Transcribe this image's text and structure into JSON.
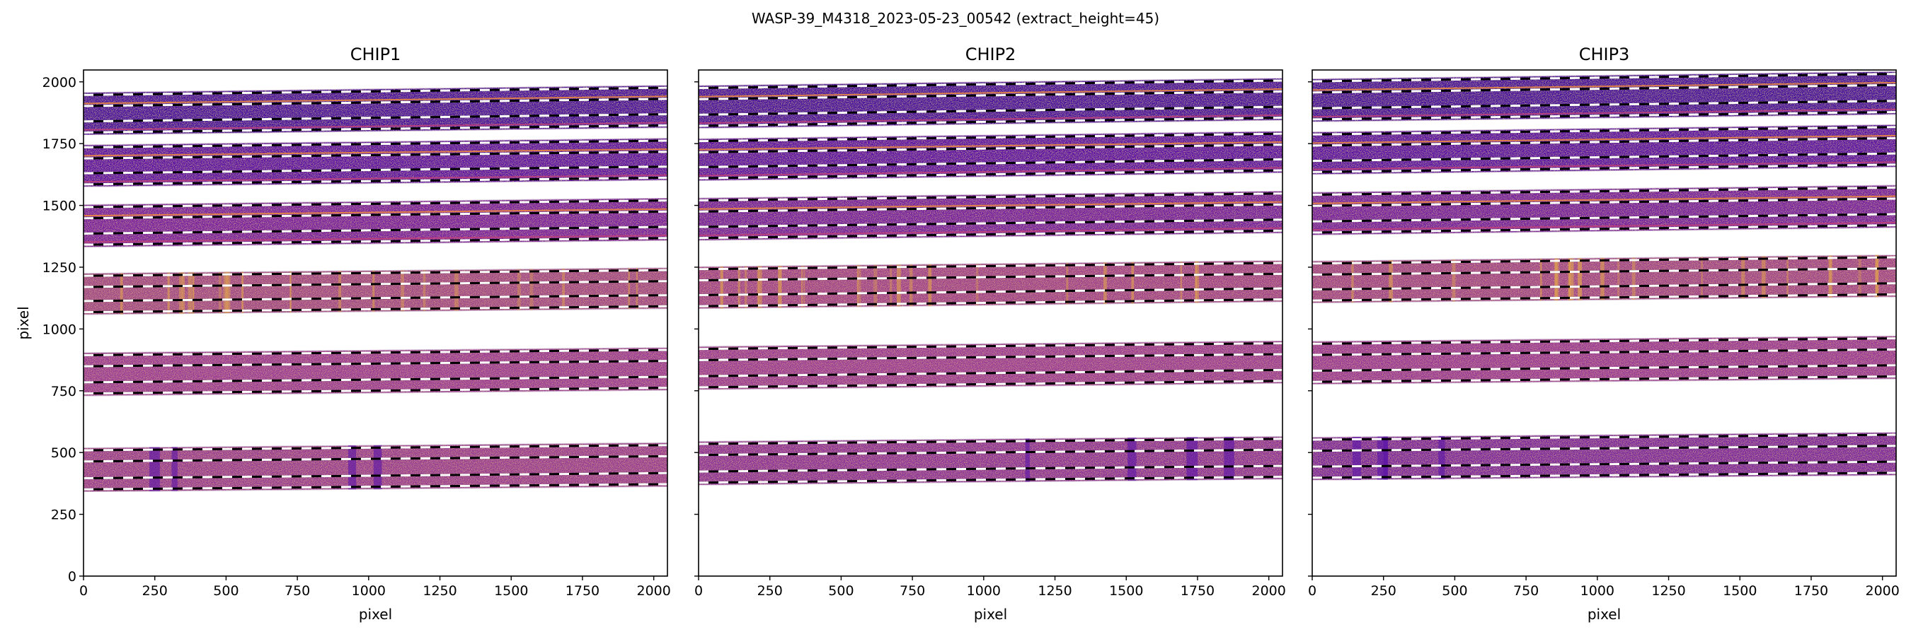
{
  "chart_data": {
    "type": "heatmap",
    "suptitle": "WASP-39_M4318_2023-05-23_00542  (extract_height=45)",
    "xlabel": "pixel",
    "ylabel": "pixel",
    "xlim": [
      0,
      2048
    ],
    "ylim": [
      0,
      2048
    ],
    "xticks": [
      "0",
      "250",
      "500",
      "750",
      "1000",
      "1250",
      "1500",
      "1750",
      "2000"
    ],
    "yticks": [
      "0",
      "250",
      "500",
      "750",
      "1000",
      "1250",
      "1500",
      "1750",
      "2000"
    ],
    "extract_height": 45,
    "colormap": "plasma",
    "panels": [
      {
        "title": "CHIP1",
        "orders": [
          {
            "bottom_left": 341,
            "top_left": 519,
            "bottom_right": 362,
            "top_right": 540,
            "color": "#9a3e92",
            "trace": false
          },
          {
            "bottom_left": 729,
            "top_left": 904,
            "bottom_right": 752,
            "top_right": 925,
            "color": "#9b3b95",
            "trace": false
          },
          {
            "bottom_left": 1058,
            "top_left": 1225,
            "bottom_right": 1082,
            "top_right": 1248,
            "color": "#a14889",
            "trace": false,
            "lines": true
          },
          {
            "bottom_left": 1331,
            "top_left": 1503,
            "bottom_right": 1358,
            "top_right": 1530,
            "color": "#7a1e9e",
            "trace": true
          },
          {
            "bottom_left": 1575,
            "top_left": 1745,
            "bottom_right": 1602,
            "top_right": 1772,
            "color": "#5d10a2",
            "trace": true
          },
          {
            "bottom_left": 1785,
            "top_left": 1957,
            "bottom_right": 1814,
            "top_right": 1986,
            "color": "#470b9c",
            "trace": true
          }
        ]
      },
      {
        "title": "CHIP2",
        "orders": [
          {
            "bottom_left": 368,
            "top_left": 545,
            "bottom_right": 392,
            "top_right": 565,
            "color": "#8e3298",
            "trace": false
          },
          {
            "bottom_left": 754,
            "top_left": 929,
            "bottom_right": 780,
            "top_right": 952,
            "color": "#9b3b95",
            "trace": false
          },
          {
            "bottom_left": 1082,
            "top_left": 1252,
            "bottom_right": 1110,
            "top_right": 1277,
            "color": "#a0438c",
            "trace": false,
            "lines": true
          },
          {
            "bottom_left": 1358,
            "top_left": 1530,
            "bottom_right": 1388,
            "top_right": 1558,
            "color": "#761c9e",
            "trace": true
          },
          {
            "bottom_left": 1600,
            "top_left": 1770,
            "bottom_right": 1632,
            "top_right": 1800,
            "color": "#5d10a2",
            "trace": true
          },
          {
            "bottom_left": 1812,
            "top_left": 1985,
            "bottom_right": 1845,
            "top_right": 2015,
            "color": "#460b9c",
            "trace": true
          }
        ]
      },
      {
        "title": "CHIP3",
        "orders": [
          {
            "bottom_left": 388,
            "top_left": 562,
            "bottom_right": 408,
            "top_right": 582,
            "color": "#7e259c",
            "trace": false
          },
          {
            "bottom_left": 776,
            "top_left": 950,
            "bottom_right": 798,
            "top_right": 972,
            "color": "#9a3996",
            "trace": false
          },
          {
            "bottom_left": 1105,
            "top_left": 1275,
            "bottom_right": 1130,
            "top_right": 1300,
            "color": "#a0448b",
            "trace": false,
            "lines": true
          },
          {
            "bottom_left": 1380,
            "top_left": 1553,
            "bottom_right": 1410,
            "top_right": 1582,
            "color": "#761c9e",
            "trace": true
          },
          {
            "bottom_left": 1625,
            "top_left": 1797,
            "bottom_right": 1655,
            "top_right": 1827,
            "color": "#5a0fa2",
            "trace": true
          },
          {
            "bottom_left": 1838,
            "top_left": 2012,
            "bottom_right": 1868,
            "top_right": 2042,
            "color": "#440a9b",
            "trace": true
          }
        ]
      }
    ]
  }
}
